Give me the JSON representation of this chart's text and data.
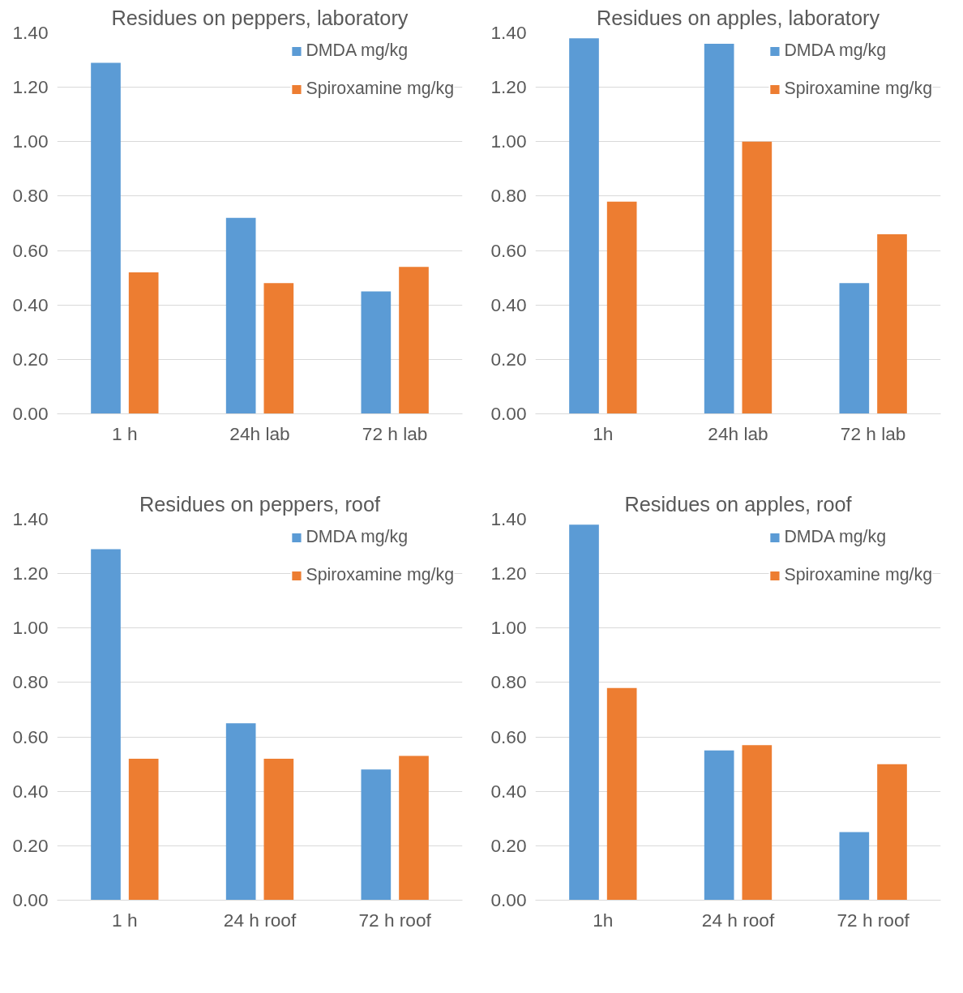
{
  "chart_data": [
    {
      "type": "bar",
      "title": "Residues on peppers, laboratory",
      "categories": [
        "1 h",
        "24h lab",
        "72 h lab"
      ],
      "series": [
        {
          "name": "DMDA mg/kg",
          "color": "#5b9bd5",
          "values": [
            1.29,
            0.72,
            0.45
          ]
        },
        {
          "name": "Spiroxamine mg/kg",
          "color": "#ed7d31",
          "values": [
            0.52,
            0.48,
            0.54
          ]
        }
      ],
      "ylim": [
        0,
        1.4
      ],
      "yticks": [
        {
          "value": 0,
          "label": "0.00"
        },
        {
          "value": 0.2,
          "label": "0.20"
        },
        {
          "value": 0.4,
          "label": "0.40"
        },
        {
          "value": 0.6,
          "label": "0.60"
        },
        {
          "value": 0.8,
          "label": "0.80"
        },
        {
          "value": 1.0,
          "label": "1.00"
        },
        {
          "value": 1.2,
          "label": "1.20"
        },
        {
          "value": 1.4,
          "label": "1.40"
        }
      ],
      "grid": "y",
      "legend": "top right"
    },
    {
      "type": "bar",
      "title": "Residues on apples, laboratory",
      "categories": [
        "1h",
        "24h lab",
        "72 h lab"
      ],
      "series": [
        {
          "name": "DMDA mg/kg",
          "color": "#5b9bd5",
          "values": [
            1.38,
            1.36,
            0.48
          ]
        },
        {
          "name": "Spiroxamine mg/kg",
          "color": "#ed7d31",
          "values": [
            0.78,
            1.0,
            0.66
          ]
        }
      ],
      "ylim": [
        0,
        1.4
      ],
      "yticks": [
        {
          "value": 0,
          "label": "0.00"
        },
        {
          "value": 0.2,
          "label": "0.20"
        },
        {
          "value": 0.4,
          "label": "0.40"
        },
        {
          "value": 0.6,
          "label": "0.60"
        },
        {
          "value": 0.8,
          "label": "0.80"
        },
        {
          "value": 1.0,
          "label": "1.00"
        },
        {
          "value": 1.2,
          "label": "1.20"
        },
        {
          "value": 1.4,
          "label": "1.40"
        }
      ],
      "grid": "y",
      "legend": "top right"
    },
    {
      "type": "bar",
      "title": "Residues on peppers, roof",
      "categories": [
        "1 h",
        "24 h roof",
        "72 h roof"
      ],
      "series": [
        {
          "name": "DMDA mg/kg",
          "color": "#5b9bd5",
          "values": [
            1.29,
            0.65,
            0.48
          ]
        },
        {
          "name": "Spiroxamine mg/kg",
          "color": "#ed7d31",
          "values": [
            0.52,
            0.52,
            0.53
          ]
        }
      ],
      "ylim": [
        0,
        1.4
      ],
      "yticks": [
        {
          "value": 0,
          "label": "0.00"
        },
        {
          "value": 0.2,
          "label": "0.20"
        },
        {
          "value": 0.4,
          "label": "0.40"
        },
        {
          "value": 0.6,
          "label": "0.60"
        },
        {
          "value": 0.8,
          "label": "0.80"
        },
        {
          "value": 1.0,
          "label": "1.00"
        },
        {
          "value": 1.2,
          "label": "1.20"
        },
        {
          "value": 1.4,
          "label": "1.40"
        }
      ],
      "grid": "y",
      "legend": "top right"
    },
    {
      "type": "bar",
      "title": "Residues on apples, roof",
      "categories": [
        "1h",
        "24 h roof",
        "72 h roof"
      ],
      "series": [
        {
          "name": "DMDA mg/kg",
          "color": "#5b9bd5",
          "values": [
            1.38,
            0.55,
            0.25
          ]
        },
        {
          "name": "Spiroxamine mg/kg",
          "color": "#ed7d31",
          "values": [
            0.78,
            0.57,
            0.5
          ]
        }
      ],
      "ylim": [
        0,
        1.4
      ],
      "yticks": [
        {
          "value": 0,
          "label": "0.00"
        },
        {
          "value": 0.2,
          "label": "0.20"
        },
        {
          "value": 0.4,
          "label": "0.40"
        },
        {
          "value": 0.6,
          "label": "0.60"
        },
        {
          "value": 0.8,
          "label": "0.80"
        },
        {
          "value": 1.0,
          "label": "1.00"
        },
        {
          "value": 1.2,
          "label": "1.20"
        },
        {
          "value": 1.4,
          "label": "1.40"
        }
      ],
      "grid": "y",
      "legend": "top right"
    }
  ]
}
